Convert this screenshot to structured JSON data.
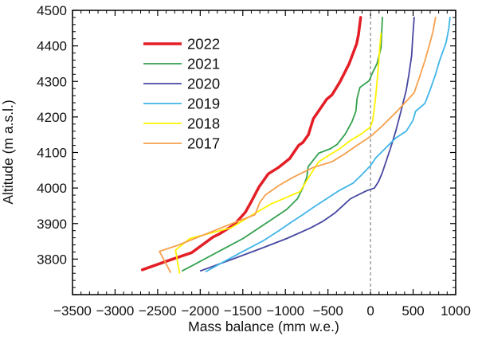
{
  "chart_data": {
    "type": "line",
    "title": "",
    "xlabel": "Mass balance (mm w.e.)",
    "ylabel": "Altitude (m a.s.l.)",
    "xlim": [
      -3500,
      1000
    ],
    "ylim": [
      3700,
      4500
    ],
    "x_tick_labels": [
      "−3500",
      "−3000",
      "−2500",
      "−2000",
      "−1500",
      "−1000",
      "−500",
      "0",
      "500",
      "1000"
    ],
    "x_ticks": [
      -3500,
      -3000,
      -2500,
      -2000,
      -1500,
      -1000,
      -500,
      0,
      500,
      1000
    ],
    "x_minor_step": 100,
    "y_ticks_labeled": [
      3800,
      3900,
      4000,
      4100,
      4200,
      4300,
      4400,
      4500
    ],
    "y_major_step": 100,
    "y_minor_step": 20,
    "grid": "off",
    "zero_reference_line": {
      "x": 0,
      "style": "dashed",
      "color": "#909090"
    },
    "legend_position": "upper-left-inside",
    "series": [
      {
        "name": "2022",
        "color": "#e31e26",
        "width": 3.5,
        "points": [
          [
            -2680,
            3770
          ],
          [
            -2360,
            3797
          ],
          [
            -2100,
            3818
          ],
          [
            -1850,
            3862
          ],
          [
            -1780,
            3870
          ],
          [
            -1600,
            3897
          ],
          [
            -1470,
            3932
          ],
          [
            -1400,
            3962
          ],
          [
            -1310,
            4003
          ],
          [
            -1200,
            4040
          ],
          [
            -1080,
            4058
          ],
          [
            -950,
            4083
          ],
          [
            -845,
            4120
          ],
          [
            -795,
            4128
          ],
          [
            -730,
            4150
          ],
          [
            -672,
            4195
          ],
          [
            -515,
            4250
          ],
          [
            -453,
            4262
          ],
          [
            -360,
            4298
          ],
          [
            -251,
            4350
          ],
          [
            -163,
            4406
          ],
          [
            -141,
            4432
          ],
          [
            -116,
            4480
          ]
        ]
      },
      {
        "name": "2021",
        "color": "#33a14e",
        "width": 1.8,
        "points": [
          [
            -2210,
            3767
          ],
          [
            -2100,
            3781
          ],
          [
            -1700,
            3832
          ],
          [
            -1497,
            3858
          ],
          [
            -1170,
            3910
          ],
          [
            -983,
            3940
          ],
          [
            -858,
            3970
          ],
          [
            -796,
            4000
          ],
          [
            -749,
            4030
          ],
          [
            -733,
            4060
          ],
          [
            -609,
            4098
          ],
          [
            -469,
            4111
          ],
          [
            -391,
            4123
          ],
          [
            -297,
            4152
          ],
          [
            -219,
            4186
          ],
          [
            -172,
            4216
          ],
          [
            -157,
            4253
          ],
          [
            -125,
            4283
          ],
          [
            -17,
            4302
          ],
          [
            30,
            4328
          ],
          [
            77,
            4350
          ],
          [
            123,
            4395
          ],
          [
            130,
            4432
          ],
          [
            139,
            4480
          ]
        ]
      },
      {
        "name": "2020",
        "color": "#4747a1",
        "width": 1.8,
        "points": [
          [
            -1996,
            3767
          ],
          [
            -1620,
            3800
          ],
          [
            -1264,
            3832
          ],
          [
            -983,
            3858
          ],
          [
            -702,
            3888
          ],
          [
            -562,
            3906
          ],
          [
            -422,
            3929
          ],
          [
            -235,
            3970
          ],
          [
            -50,
            3992
          ],
          [
            46,
            4000
          ],
          [
            93,
            4018
          ],
          [
            139,
            4044
          ],
          [
            202,
            4089
          ],
          [
            233,
            4111
          ],
          [
            296,
            4160
          ],
          [
            357,
            4216
          ],
          [
            420,
            4276
          ],
          [
            451,
            4320
          ],
          [
            483,
            4373
          ],
          [
            498,
            4432
          ],
          [
            513,
            4480
          ]
        ]
      },
      {
        "name": "2019",
        "color": "#3fb5e9",
        "width": 1.8,
        "points": [
          [
            -1934,
            3765
          ],
          [
            -1550,
            3815
          ],
          [
            -1264,
            3851
          ],
          [
            -1077,
            3880
          ],
          [
            -936,
            3903
          ],
          [
            -796,
            3925
          ],
          [
            -656,
            3948
          ],
          [
            -515,
            3970
          ],
          [
            -375,
            3992
          ],
          [
            -204,
            4014
          ],
          [
            -110,
            4036
          ],
          [
            0,
            4063
          ],
          [
            62,
            4085
          ],
          [
            170,
            4111
          ],
          [
            296,
            4141
          ],
          [
            420,
            4160
          ],
          [
            498,
            4190
          ],
          [
            529,
            4216
          ],
          [
            638,
            4238
          ],
          [
            700,
            4276
          ],
          [
            763,
            4320
          ],
          [
            810,
            4358
          ],
          [
            888,
            4410
          ],
          [
            918,
            4447
          ],
          [
            934,
            4480
          ]
        ]
      },
      {
        "name": "2018",
        "color": "#fef200",
        "width": 1.8,
        "points": [
          [
            -2243,
            3761
          ],
          [
            -2290,
            3825
          ],
          [
            -2121,
            3858
          ],
          [
            -1638,
            3888
          ],
          [
            -1357,
            3929
          ],
          [
            -1170,
            3955
          ],
          [
            -983,
            3974
          ],
          [
            -827,
            3990
          ],
          [
            -740,
            4025
          ],
          [
            -609,
            4074
          ],
          [
            -484,
            4093
          ],
          [
            -359,
            4111
          ],
          [
            -235,
            4134
          ],
          [
            -110,
            4152
          ],
          [
            0,
            4172
          ],
          [
            25,
            4190
          ],
          [
            40,
            4216
          ],
          [
            62,
            4260
          ],
          [
            77,
            4300
          ],
          [
            93,
            4345
          ],
          [
            108,
            4395
          ],
          [
            123,
            4436
          ]
        ]
      },
      {
        "name": "2017",
        "color": "#f6a04d",
        "width": 1.8,
        "points": [
          [
            -2349,
            3763
          ],
          [
            -2479,
            3822
          ],
          [
            -2262,
            3839
          ],
          [
            -1950,
            3869
          ],
          [
            -1638,
            3899
          ],
          [
            -1357,
            3925
          ],
          [
            -1300,
            3960
          ],
          [
            -1232,
            3981
          ],
          [
            -1077,
            4007
          ],
          [
            -920,
            4029
          ],
          [
            -670,
            4058
          ],
          [
            -453,
            4074
          ],
          [
            -297,
            4097
          ],
          [
            -141,
            4123
          ],
          [
            0,
            4145
          ],
          [
            139,
            4175
          ],
          [
            311,
            4216
          ],
          [
            513,
            4268
          ],
          [
            576,
            4313
          ],
          [
            638,
            4358
          ],
          [
            700,
            4410
          ],
          [
            732,
            4440
          ],
          [
            763,
            4480
          ]
        ]
      }
    ]
  }
}
